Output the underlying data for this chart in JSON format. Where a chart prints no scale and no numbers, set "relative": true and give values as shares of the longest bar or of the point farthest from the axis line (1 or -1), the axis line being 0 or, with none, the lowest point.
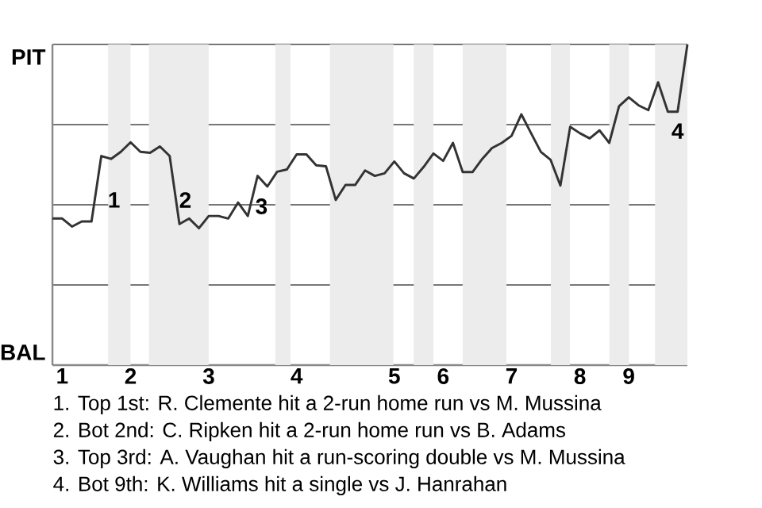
{
  "chart_data": {
    "type": "line",
    "relative": true,
    "categories": [
      null,
      "1",
      null,
      null,
      null,
      null,
      null,
      null,
      "2",
      null,
      null,
      null,
      null,
      null,
      null,
      null,
      "3",
      null,
      null,
      null,
      null,
      null,
      null,
      null,
      null,
      "4",
      null,
      null,
      null,
      null,
      null,
      null,
      null,
      null,
      null,
      "5",
      null,
      null,
      null,
      null,
      "6",
      null,
      null,
      null,
      null,
      null,
      null,
      "7",
      null,
      null,
      null,
      null,
      null,
      null,
      "8",
      null,
      null,
      null,
      null,
      "9",
      null,
      null,
      null,
      null,
      null,
      null
    ],
    "series": [
      {
        "color": "#333333",
        "values": [
          0.457,
          0.457,
          0.432,
          0.448,
          0.448,
          0.652,
          0.643,
          0.665,
          0.695,
          0.665,
          0.662,
          0.682,
          0.652,
          0.44,
          0.457,
          0.427,
          0.465,
          0.465,
          0.457,
          0.507,
          0.465,
          0.59,
          0.557,
          0.603,
          0.61,
          0.657,
          0.657,
          0.623,
          0.62,
          0.515,
          0.562,
          0.562,
          0.607,
          0.59,
          0.598,
          0.635,
          0.598,
          0.582,
          0.618,
          0.66,
          0.637,
          0.693,
          0.602,
          0.602,
          0.643,
          0.677,
          0.693,
          0.715,
          0.782,
          0.723,
          0.665,
          0.64,
          0.56,
          0.743,
          0.723,
          0.707,
          0.732,
          0.693,
          0.807,
          0.835,
          0.81,
          0.795,
          0.882,
          0.79,
          0.79,
          1
        ]
      }
    ],
    "grid": "y",
    "annotations": [
      "PIT",
      "BAL",
      "1",
      "2",
      "3",
      "4",
      "1. Top 1st: R. Clemente hit a 2-run home run vs M. Mussina",
      "2. Bot 2nd: C. Ripken hit a 2-run home run vs B. Adams",
      "3. Top 3rd: A. Vaughan hit a run-scoring double vs M. Mussina",
      "4. Bot 9th: K. Williams hit a single vs J. Hanrahan"
    ]
  }
}
